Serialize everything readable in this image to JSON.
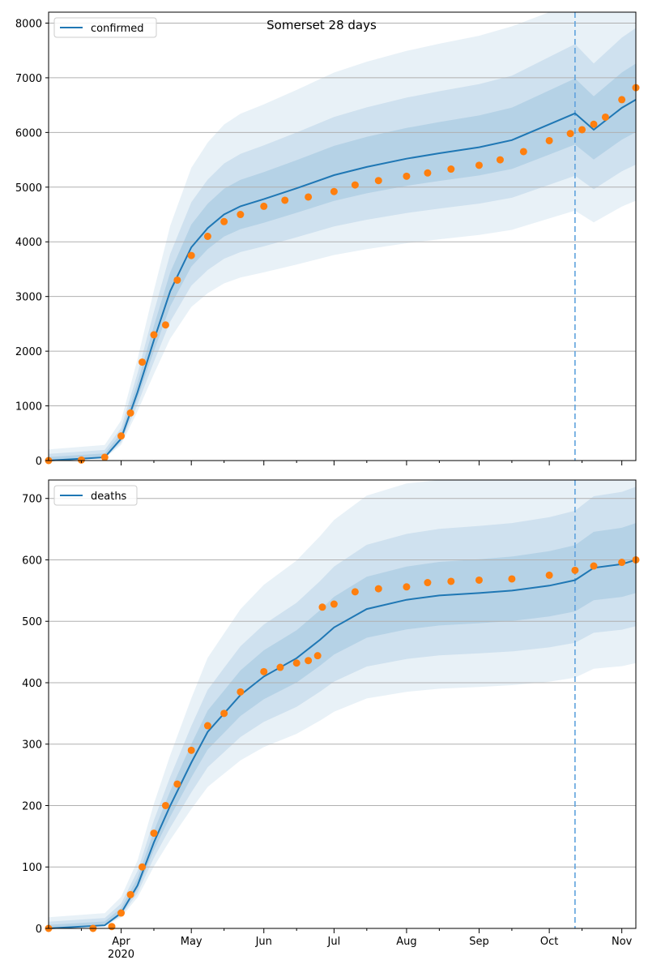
{
  "figure": {
    "title": "Somerset 28 days"
  },
  "chart_data": [
    {
      "type": "line",
      "title": "Somerset 28 days",
      "xlabel": "",
      "ylabel": "",
      "ylim": [
        0,
        8200
      ],
      "yticks": [
        0,
        1000,
        2000,
        3000,
        4000,
        5000,
        6000,
        7000,
        8000
      ],
      "grid": "horizontal",
      "legend": {
        "position": "top-left",
        "entries": [
          "confirmed"
        ]
      },
      "forecast_start": "2020-10-12",
      "series": [
        {
          "name": "confirmed",
          "kind": "model-median-line",
          "color": "#1f77b4",
          "x": [
            "2020-03-01",
            "2020-03-25",
            "2020-04-01",
            "2020-04-08",
            "2020-04-15",
            "2020-04-22",
            "2020-05-01",
            "2020-05-08",
            "2020-05-15",
            "2020-05-22",
            "2020-06-01",
            "2020-06-15",
            "2020-07-01",
            "2020-07-15",
            "2020-08-01",
            "2020-08-15",
            "2020-09-01",
            "2020-09-15",
            "2020-10-01",
            "2020-10-12",
            "2020-10-20",
            "2020-11-01",
            "2020-11-07"
          ],
          "y": [
            0,
            60,
            400,
            1250,
            2200,
            3100,
            3900,
            4250,
            4500,
            4650,
            4780,
            4980,
            5220,
            5370,
            5520,
            5620,
            5730,
            5860,
            6150,
            6350,
            6050,
            6450,
            6600
          ]
        },
        {
          "name": "",
          "kind": "observed-points",
          "color": "#ff7f0e",
          "x": [
            "2020-03-01",
            "2020-03-15",
            "2020-03-25",
            "2020-04-01",
            "2020-04-05",
            "2020-04-10",
            "2020-04-15",
            "2020-04-20",
            "2020-04-25",
            "2020-05-01",
            "2020-05-08",
            "2020-05-15",
            "2020-05-22",
            "2020-06-01",
            "2020-06-10",
            "2020-06-20",
            "2020-07-01",
            "2020-07-10",
            "2020-07-20",
            "2020-08-01",
            "2020-08-10",
            "2020-08-20",
            "2020-09-01",
            "2020-09-10",
            "2020-09-20",
            "2020-10-01",
            "2020-10-10",
            "2020-10-15",
            "2020-10-20",
            "2020-10-25",
            "2020-11-01",
            "2020-11-07"
          ],
          "y": [
            0,
            10,
            60,
            450,
            870,
            1800,
            2300,
            2480,
            3300,
            3750,
            4100,
            4370,
            4500,
            4650,
            4760,
            4820,
            4920,
            5040,
            5120,
            5200,
            5260,
            5330,
            5400,
            5500,
            5650,
            5850,
            5980,
            6050,
            6150,
            6280,
            6600,
            6820
          ]
        }
      ],
      "bands_note": "shaded credible intervals around the model line"
    },
    {
      "type": "line",
      "title": "",
      "xlabel": "",
      "ylabel": "",
      "ylim": [
        0,
        730
      ],
      "yticks": [
        0,
        100,
        200,
        300,
        400,
        500,
        600,
        700
      ],
      "xticks": [
        "Apr\n2020",
        "May",
        "Jun",
        "Jul",
        "Aug",
        "Sep",
        "Oct",
        "Nov"
      ],
      "grid": "horizontal",
      "legend": {
        "position": "top-left",
        "entries": [
          "deaths"
        ]
      },
      "forecast_start": "2020-10-12",
      "series": [
        {
          "name": "deaths",
          "kind": "model-median-line",
          "color": "#1f77b4",
          "x": [
            "2020-03-01",
            "2020-03-25",
            "2020-04-01",
            "2020-04-08",
            "2020-04-15",
            "2020-04-22",
            "2020-05-01",
            "2020-05-08",
            "2020-05-15",
            "2020-05-22",
            "2020-06-01",
            "2020-06-15",
            "2020-06-25",
            "2020-07-01",
            "2020-07-15",
            "2020-08-01",
            "2020-08-15",
            "2020-09-01",
            "2020-09-15",
            "2020-10-01",
            "2020-10-12",
            "2020-10-20",
            "2020-11-01",
            "2020-11-07"
          ],
          "y": [
            0,
            5,
            25,
            70,
            140,
            200,
            270,
            320,
            350,
            380,
            410,
            440,
            470,
            490,
            520,
            535,
            542,
            546,
            550,
            558,
            567,
            587,
            593,
            600
          ]
        },
        {
          "name": "",
          "kind": "observed-points",
          "color": "#ff7f0e",
          "x": [
            "2020-03-01",
            "2020-03-20",
            "2020-03-28",
            "2020-04-01",
            "2020-04-05",
            "2020-04-10",
            "2020-04-15",
            "2020-04-20",
            "2020-04-25",
            "2020-05-01",
            "2020-05-08",
            "2020-05-15",
            "2020-05-22",
            "2020-06-01",
            "2020-06-08",
            "2020-06-15",
            "2020-06-20",
            "2020-06-24",
            "2020-06-26",
            "2020-07-01",
            "2020-07-10",
            "2020-07-20",
            "2020-08-01",
            "2020-08-10",
            "2020-08-20",
            "2020-09-01",
            "2020-09-15",
            "2020-10-01",
            "2020-10-12",
            "2020-10-20",
            "2020-11-01",
            "2020-11-07"
          ],
          "y": [
            0,
            0,
            3,
            25,
            55,
            100,
            155,
            200,
            235,
            290,
            330,
            350,
            385,
            418,
            425,
            432,
            436,
            444,
            523,
            528,
            548,
            553,
            556,
            563,
            565,
            567,
            569,
            575,
            583,
            590,
            596,
            600
          ]
        }
      ],
      "bands_note": "shaded credible intervals around the model line"
    }
  ]
}
